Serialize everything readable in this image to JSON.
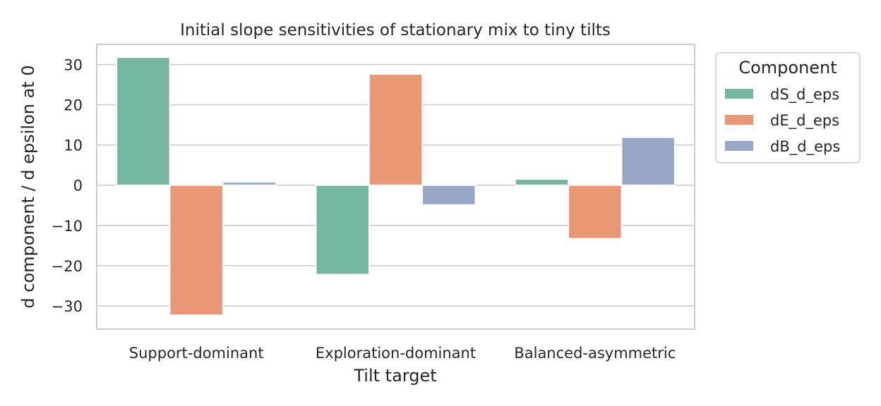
{
  "chart_data": {
    "type": "bar",
    "title": "Initial slope sensitivities of stationary mix to tiny tilts",
    "xlabel": "Tilt target",
    "ylabel": "d component / d epsilon at 0",
    "categories": [
      "Support-dominant",
      "Exploration-dominant",
      "Balanced-asymmetric"
    ],
    "series": [
      {
        "name": "dS_d_eps",
        "color": "#75b7a0",
        "values": [
          31.8,
          -22.2,
          1.5
        ]
      },
      {
        "name": "dE_d_eps",
        "color": "#e99774",
        "values": [
          -32.3,
          27.6,
          -13.3
        ]
      },
      {
        "name": "dB_d_eps",
        "color": "#97a6c6",
        "values": [
          0.8,
          -4.9,
          11.9
        ]
      }
    ],
    "ylim": [
      -35.8,
      35.0
    ],
    "yticks": [
      -30,
      -20,
      -10,
      0,
      10,
      20,
      30
    ],
    "ytick_labels": [
      "−30",
      "−20",
      "−10",
      "0",
      "10",
      "20",
      "30"
    ],
    "grid": true,
    "legend": {
      "title": "Component",
      "placement": "outside-right"
    }
  }
}
